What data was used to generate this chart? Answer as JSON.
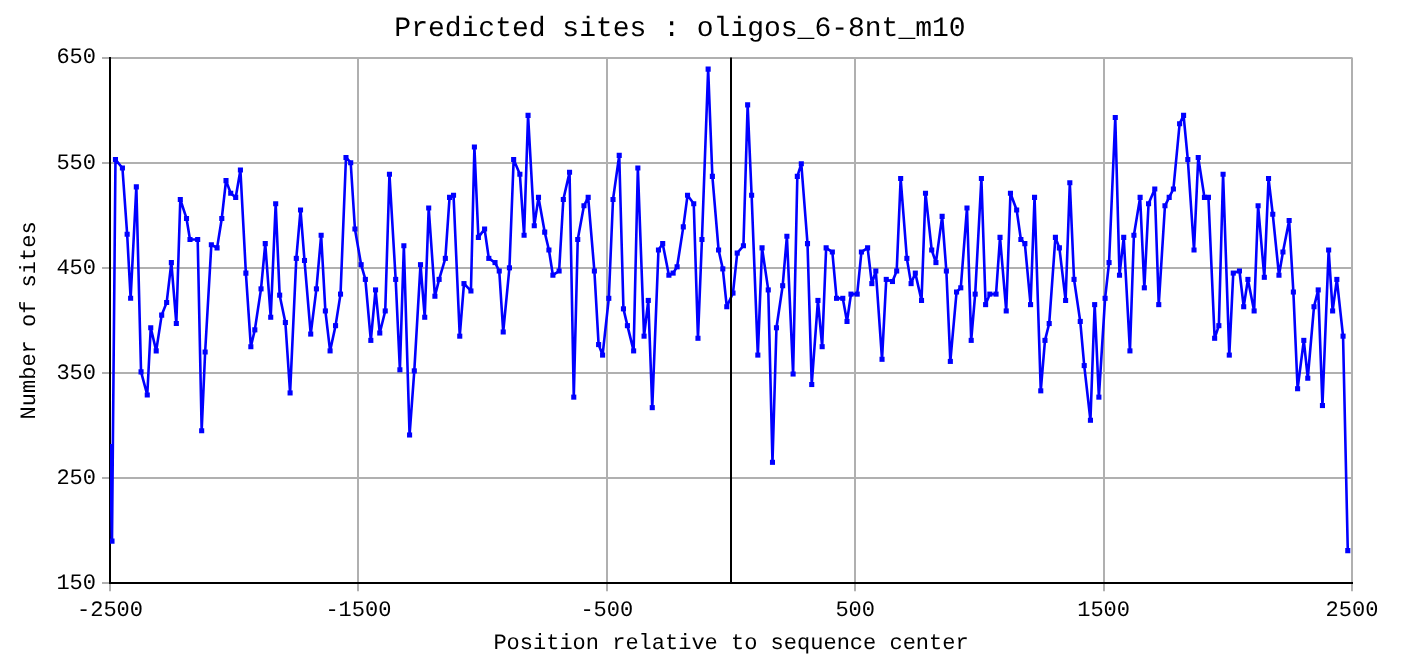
{
  "chart_data": {
    "type": "line",
    "title": "Predicted sites : oligos_6-8nt_m10",
    "xlabel": "Position relative to sequence center",
    "ylabel": "Number of sites",
    "xlim": [
      -2500,
      2500
    ],
    "xticks": [
      -2500,
      -1500,
      -500,
      500,
      1500,
      2500
    ],
    "ylim": [
      150,
      650
    ],
    "yticks": [
      150,
      250,
      350,
      450,
      550,
      650
    ],
    "grid": true,
    "legend": false,
    "marker": "square",
    "line_style": "solid",
    "ref_lines": [
      {
        "axis": "x",
        "value": 0,
        "color": "#000000"
      }
    ],
    "series": [
      {
        "color": "#0000ff",
        "x": [
          -2500,
          -2492,
          -2478,
          -2450,
          -2431,
          -2417,
          -2394,
          -2375,
          -2350,
          -2336,
          -2314,
          -2292,
          -2272,
          -2253,
          -2233,
          -2217,
          -2192,
          -2178,
          -2147,
          -2131,
          -2117,
          -2092,
          -2069,
          -2050,
          -2033,
          -2014,
          -1994,
          -1975,
          -1953,
          -1933,
          -1917,
          -1892,
          -1875,
          -1853,
          -1833,
          -1817,
          -1794,
          -1775,
          -1750,
          -1733,
          -1717,
          -1692,
          -1669,
          -1650,
          -1633,
          -1614,
          -1592,
          -1572,
          -1550,
          -1531,
          -1514,
          -1489,
          -1472,
          -1450,
          -1431,
          -1414,
          -1392,
          -1375,
          -1350,
          -1333,
          -1317,
          -1294,
          -1275,
          -1250,
          -1233,
          -1217,
          -1192,
          -1175,
          -1150,
          -1133,
          -1117,
          -1092,
          -1075,
          -1047,
          -1033,
          -1017,
          -992,
          -975,
          -950,
          -933,
          -917,
          -892,
          -875,
          -850,
          -833,
          -817,
          -792,
          -775,
          -750,
          -733,
          -717,
          -692,
          -675,
          -650,
          -633,
          -617,
          -592,
          -575,
          -550,
          -533,
          -517,
          -492,
          -475,
          -450,
          -433,
          -417,
          -392,
          -375,
          -350,
          -333,
          -317,
          -292,
          -275,
          -250,
          -233,
          -217,
          -192,
          -175,
          -150,
          -133,
          -117,
          -92,
          -75,
          -50,
          -33,
          -17,
          8,
          25,
          50,
          67,
          83,
          108,
          125,
          150,
          167,
          183,
          208,
          225,
          250,
          267,
          283,
          308,
          325,
          350,
          367,
          383,
          408,
          425,
          450,
          467,
          483,
          508,
          525,
          550,
          567,
          583,
          608,
          625,
          650,
          667,
          683,
          708,
          725,
          742,
          767,
          783,
          808,
          825,
          850,
          867,
          883,
          908,
          925,
          950,
          967,
          983,
          1008,
          1025,
          1042,
          1067,
          1083,
          1108,
          1125,
          1150,
          1167,
          1183,
          1206,
          1222,
          1247,
          1264,
          1281,
          1306,
          1322,
          1347,
          1364,
          1381,
          1406,
          1422,
          1447,
          1464,
          1481,
          1506,
          1522,
          1547,
          1564,
          1581,
          1606,
          1622,
          1647,
          1664,
          1681,
          1706,
          1722,
          1747,
          1764,
          1781,
          1806,
          1822,
          1839,
          1864,
          1881,
          1906,
          1922,
          1947,
          1964,
          1981,
          2006,
          2022,
          2047,
          2064,
          2081,
          2106,
          2122,
          2147,
          2164,
          2181,
          2206,
          2222,
          2247,
          2264,
          2281,
          2306,
          2322,
          2347,
          2364,
          2381,
          2406,
          2422,
          2439,
          2464,
          2483
        ],
        "values": [
          280,
          190,
          553,
          545,
          482,
          421,
          527,
          351,
          329,
          393,
          371,
          405,
          417,
          455,
          397,
          515,
          497,
          477,
          477,
          295,
          370,
          472,
          469,
          497,
          533,
          521,
          517,
          543,
          445,
          375,
          391,
          430,
          473,
          403,
          511,
          424,
          398,
          331,
          459,
          505,
          457,
          387,
          430,
          481,
          409,
          371,
          395,
          425,
          555,
          550,
          487,
          453,
          439,
          381,
          429,
          388,
          409,
          539,
          439,
          353,
          471,
          291,
          352,
          453,
          403,
          507,
          423,
          439,
          459,
          517,
          519,
          385,
          435,
          428,
          565,
          479,
          487,
          459,
          455,
          447,
          389,
          450,
          553,
          539,
          481,
          595,
          490,
          517,
          484,
          467,
          443,
          447,
          515,
          541,
          327,
          477,
          509,
          517,
          447,
          377,
          367,
          421,
          515,
          557,
          411,
          395,
          371,
          545,
          385,
          419,
          317,
          467,
          473,
          443,
          445,
          451,
          489,
          519,
          511,
          383,
          477,
          639,
          537,
          467,
          449,
          413,
          426,
          464,
          471,
          605,
          519,
          367,
          469,
          429,
          265,
          393,
          433,
          480,
          349,
          537,
          549,
          473,
          339,
          419,
          375,
          469,
          465,
          421,
          421,
          399,
          425,
          425,
          465,
          469,
          435,
          447,
          363,
          439,
          437,
          447,
          535,
          459,
          435,
          445,
          419,
          521,
          467,
          455,
          499,
          447,
          361,
          427,
          431,
          507,
          381,
          425,
          535,
          415,
          425,
          425,
          479,
          409,
          521,
          505,
          477,
          473,
          415,
          517,
          333,
          381,
          397,
          479,
          469,
          419,
          531,
          439,
          399,
          357,
          305,
          415,
          327,
          421,
          455,
          593,
          443,
          479,
          371,
          481,
          517,
          431,
          511,
          525,
          415,
          509,
          517,
          525,
          587,
          595,
          553,
          467,
          555,
          517,
          517,
          383,
          395,
          539,
          367,
          445,
          447,
          413,
          439,
          409,
          509,
          441,
          535,
          501,
          443,
          465,
          495,
          427,
          335,
          381,
          345,
          413,
          429,
          319,
          467,
          409,
          439,
          385,
          181
        ]
      }
    ]
  }
}
